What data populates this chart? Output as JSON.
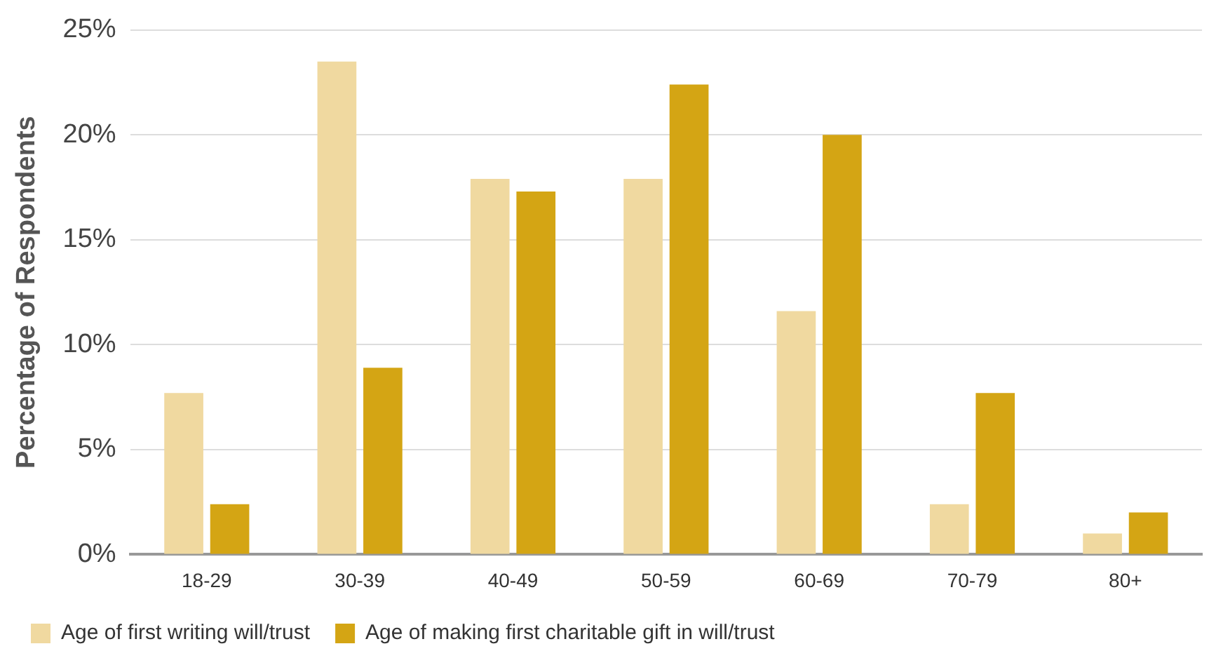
{
  "chart_data": {
    "type": "bar",
    "ylabel": "Percentage of Respondents",
    "categories": [
      "18-29",
      "30-39",
      "40-49",
      "50-59",
      "60-69",
      "70-79",
      "80+"
    ],
    "series": [
      {
        "name": "Age of first writing will/trust",
        "color": "#f0d9a0",
        "values": [
          7.7,
          23.5,
          17.9,
          17.9,
          11.6,
          2.4,
          1.0
        ]
      },
      {
        "name": "Age of making first charitable gift in will/trust",
        "color": "#d4a514",
        "values": [
          2.4,
          8.9,
          17.3,
          22.4,
          20.0,
          7.7,
          2.0
        ]
      }
    ],
    "ylim": [
      0,
      25
    ],
    "yticks": [
      {
        "value": 0,
        "label": "0%"
      },
      {
        "value": 5,
        "label": "5%"
      },
      {
        "value": 10,
        "label": "10%"
      },
      {
        "value": 15,
        "label": "15%"
      },
      {
        "value": 20,
        "label": "20%"
      },
      {
        "value": 25,
        "label": "25%"
      }
    ],
    "grid": "y",
    "legend": "bottom left"
  }
}
